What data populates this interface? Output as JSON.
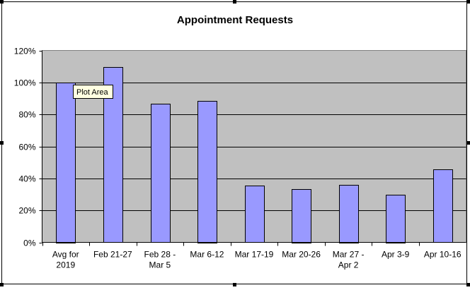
{
  "chart_data": {
    "type": "bar",
    "title": "Appointment Requests",
    "categories": [
      [
        "Avg for",
        "2019"
      ],
      [
        "Feb 21-27"
      ],
      [
        "Feb 28 -",
        "Mar 5"
      ],
      [
        "Mar 6-12"
      ],
      [
        "Mar 17-19"
      ],
      [
        "Mar 20-26"
      ],
      [
        "Mar 27 -",
        "Apr 2"
      ],
      [
        "Apr 3-9"
      ],
      [
        "Apr 10-16"
      ]
    ],
    "values": [
      100,
      109.5,
      86.5,
      88.5,
      35.5,
      33.5,
      36,
      30,
      45.5
    ],
    "yticks": [
      "0%",
      "20%",
      "40%",
      "60%",
      "80%",
      "100%",
      "120%"
    ],
    "ylim": [
      0,
      120
    ],
    "ystep": 20,
    "grid": true,
    "tooltip": "Plot Area",
    "colors": {
      "bar_fill": "#9999FF",
      "plot_bg": "#C0C0C0",
      "gridline": "#000000",
      "frame": "#000000"
    }
  }
}
